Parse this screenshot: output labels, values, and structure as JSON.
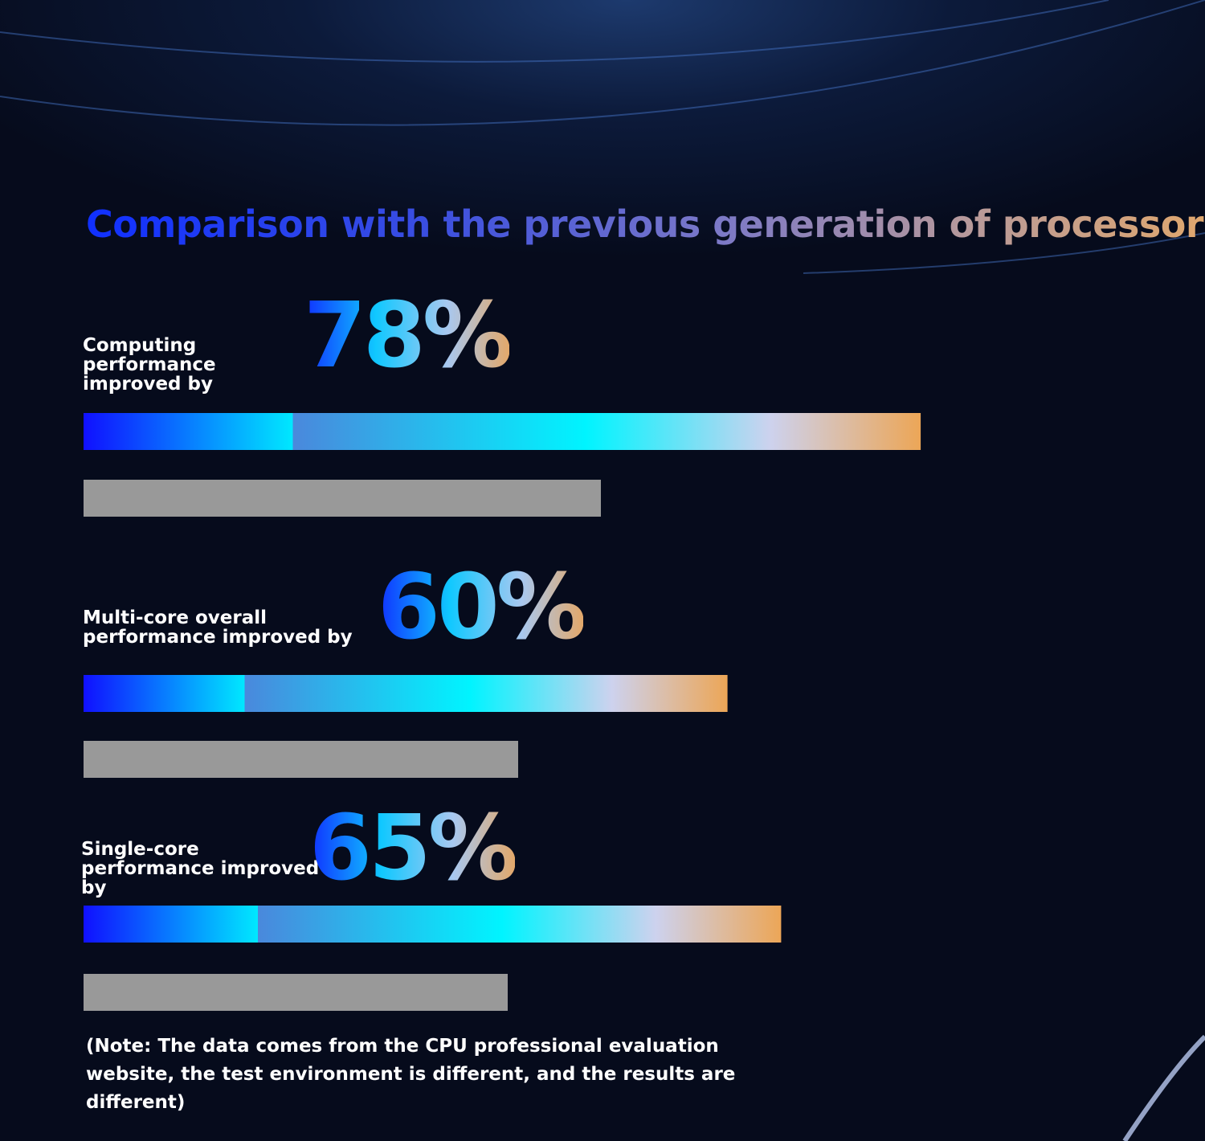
{
  "chart_data": {
    "type": "bar",
    "orientation": "horizontal",
    "title": "Comparison with the previous generation of processors",
    "categories": [
      "Computing performance improved by",
      "Multi-core overall performance improved by",
      "Single-core performance improved by"
    ],
    "values": [
      78,
      60,
      65
    ],
    "value_labels": [
      "78%",
      "60%",
      "65%"
    ]
  },
  "note": "(Note: The data comes from the CPU professional evaluation website, the test environment is different, and the results are different)"
}
